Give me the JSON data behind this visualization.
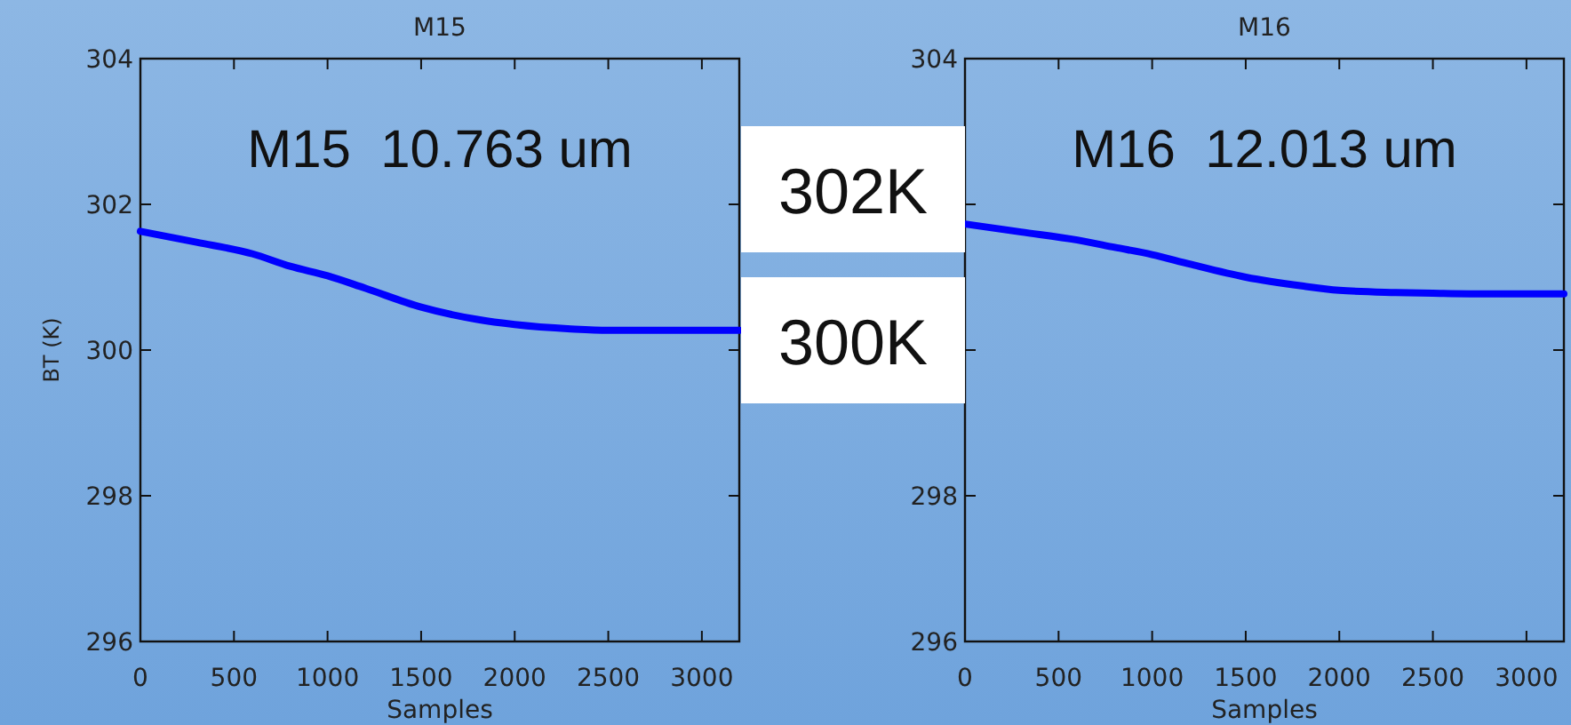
{
  "chart_data": [
    {
      "type": "line",
      "title": "M15",
      "xlabel": "Samples",
      "ylabel": "BT (K)",
      "xlim": [
        0,
        3200
      ],
      "xticks": [
        0,
        500,
        1000,
        1500,
        2000,
        2500,
        3000
      ],
      "ylim": [
        296,
        304
      ],
      "yticks": [
        296,
        298,
        300,
        302,
        304
      ],
      "annotations": [
        "M15  10.763 um"
      ],
      "series": [
        {
          "color": "#0000ff",
          "x": [
            0,
            300,
            600,
            800,
            1000,
            1200,
            1500,
            1800,
            2000,
            2300,
            2500,
            2800,
            3200
          ],
          "values": [
            301.63,
            301.48,
            301.32,
            301.15,
            301.02,
            300.85,
            300.59,
            300.42,
            300.35,
            300.29,
            300.27,
            300.27,
            300.27
          ]
        }
      ]
    },
    {
      "type": "line",
      "title": "M16",
      "xlabel": "Samples",
      "xlim": [
        0,
        3200
      ],
      "xticks": [
        0,
        500,
        1000,
        1500,
        2000,
        2500,
        3000
      ],
      "ylim": [
        296,
        304
      ],
      "yticks": [
        296,
        298,
        {
          "value": 300,
          "label": null
        },
        {
          "value": 302,
          "label": null
        },
        304
      ],
      "annotations": [
        "M16  12.013 um",
        "302K",
        "300K"
      ],
      "series": [
        {
          "color": "#0000ff",
          "x": [
            0,
            300,
            600,
            800,
            1000,
            1200,
            1500,
            1800,
            2000,
            2300,
            2500,
            2800,
            3200
          ],
          "values": [
            301.73,
            301.62,
            301.51,
            301.41,
            301.31,
            301.18,
            301.0,
            300.88,
            300.82,
            300.79,
            300.78,
            300.77,
            300.77
          ]
        }
      ]
    }
  ]
}
